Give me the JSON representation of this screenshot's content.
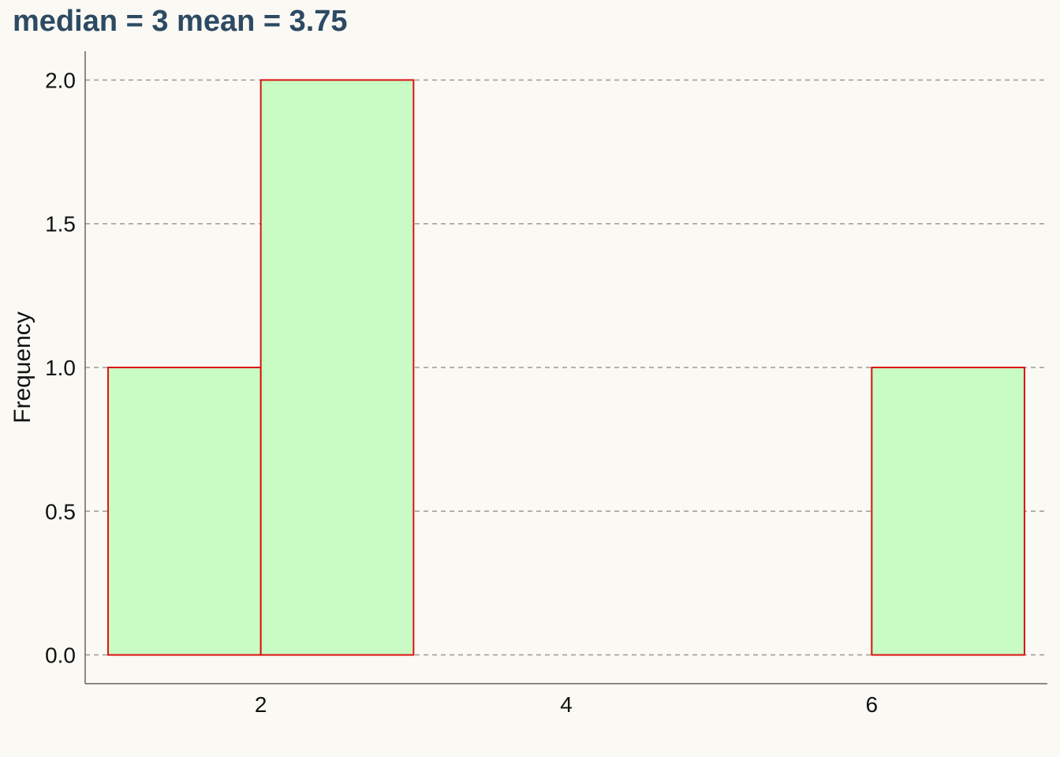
{
  "chart_data": {
    "type": "bar",
    "title": "median = 3 mean = 3.75",
    "xlabel": "",
    "ylabel": "Frequency",
    "bins": [
      {
        "x0": 1,
        "x1": 2,
        "value": 1
      },
      {
        "x0": 2,
        "x1": 3,
        "value": 2
      },
      {
        "x0": 3,
        "x1": 4,
        "value": 0
      },
      {
        "x0": 4,
        "x1": 5,
        "value": 0
      },
      {
        "x0": 5,
        "x1": 6,
        "value": 0
      },
      {
        "x0": 6,
        "x1": 7,
        "value": 1
      }
    ],
    "xlim": [
      0.85,
      7.15
    ],
    "ylim": [
      -0.1,
      2.1
    ],
    "x_ticks": [
      2,
      4,
      6
    ],
    "x_tick_labels": [
      "2",
      "4",
      "6"
    ],
    "y_ticks": [
      0,
      0.5,
      1,
      1.5,
      2
    ],
    "y_tick_labels": [
      "0.0",
      "0.5",
      "1.0",
      "1.5",
      "2.0"
    ],
    "grid": "horizontal dashed",
    "colors": {
      "bar_fill": "#c8fcc4",
      "bar_edge": "#dd1111",
      "grid": "#9a9a9a",
      "axis": "#666666",
      "title": "#2d4a63",
      "background": "#faf9f4"
    }
  }
}
